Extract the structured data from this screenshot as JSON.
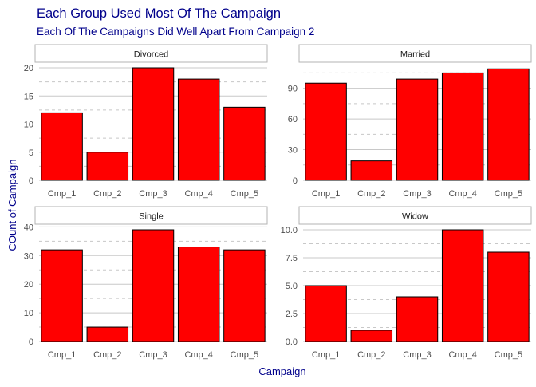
{
  "chart_data": {
    "type": "bar",
    "title": "Each Group Used Most Of The Campaign",
    "subtitle": "Each Of The Campaigns Did Well Apart From Campaign 2",
    "xlabel": "Campaign",
    "ylabel": "COunt of Campaign",
    "categories": [
      "Cmp_1",
      "Cmp_2",
      "Cmp_3",
      "Cmp_4",
      "Cmp_5"
    ],
    "bar_color": "#ff0000",
    "bar_border": "#000000",
    "title_color": "#00008b",
    "grid": true,
    "panels": [
      {
        "name": "Divorced",
        "values": [
          12,
          5,
          20,
          18,
          13
        ],
        "ylim": [
          0,
          20
        ],
        "yticks": [
          0,
          5,
          10,
          15,
          20
        ],
        "ytick_labels": [
          "0",
          "5",
          "10",
          "15",
          "20"
        ]
      },
      {
        "name": "Married",
        "values": [
          95,
          19,
          99,
          105,
          109
        ],
        "ylim": [
          0,
          110
        ],
        "yticks": [
          0,
          30,
          60,
          90
        ],
        "ytick_labels": [
          "0",
          "30",
          "60",
          "90"
        ]
      },
      {
        "name": "Single",
        "values": [
          32,
          5,
          39,
          33,
          32
        ],
        "ylim": [
          0,
          39
        ],
        "yticks": [
          0,
          10,
          20,
          30,
          40
        ],
        "ytick_labels": [
          "0",
          "10",
          "20",
          "30",
          "40"
        ]
      },
      {
        "name": "Widow",
        "values": [
          5,
          1,
          4,
          10,
          8
        ],
        "ylim": [
          0,
          10
        ],
        "yticks": [
          0,
          2.5,
          5,
          7.5,
          10
        ],
        "ytick_labels": [
          "0.0",
          "2.5",
          "5.0",
          "7.5",
          "10.0"
        ]
      }
    ]
  }
}
